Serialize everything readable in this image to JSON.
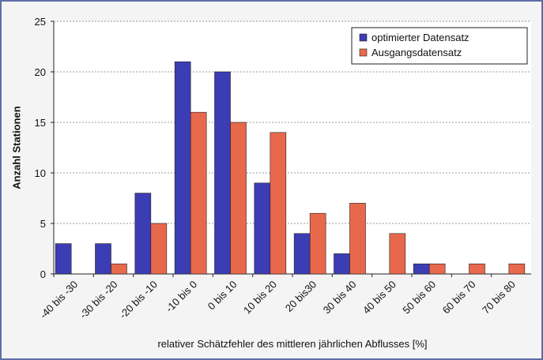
{
  "chart_data": {
    "type": "bar",
    "categories": [
      "-40 bis -30",
      "-30 bis -20",
      "-20 bis -10",
      "-10 bis 0",
      "0 bis 10",
      "10 bis 20",
      "20 bis30",
      "30 bis 40",
      "40 bis 50",
      "50 bis 60",
      "60 bis 70",
      "70 bis 80"
    ],
    "series": [
      {
        "name": "optimierter Datensatz",
        "color": "#3c3cb4",
        "values": [
          3,
          3,
          8,
          21,
          20,
          9,
          4,
          2,
          0,
          1,
          0,
          0
        ]
      },
      {
        "name": "Ausgangsdatensatz",
        "color": "#e8684c",
        "values": [
          0,
          1,
          5,
          16,
          15,
          14,
          6,
          7,
          4,
          1,
          1,
          1
        ]
      }
    ],
    "ylabel": "Anzahl Stationen",
    "xlabel": "relativer Schätzfehler des mittleren jährlichen Abflusses [%]",
    "ylim": [
      0,
      25
    ],
    "yticks": [
      0,
      5,
      10,
      15,
      20,
      25
    ],
    "grid": true,
    "legend": "upper right"
  }
}
